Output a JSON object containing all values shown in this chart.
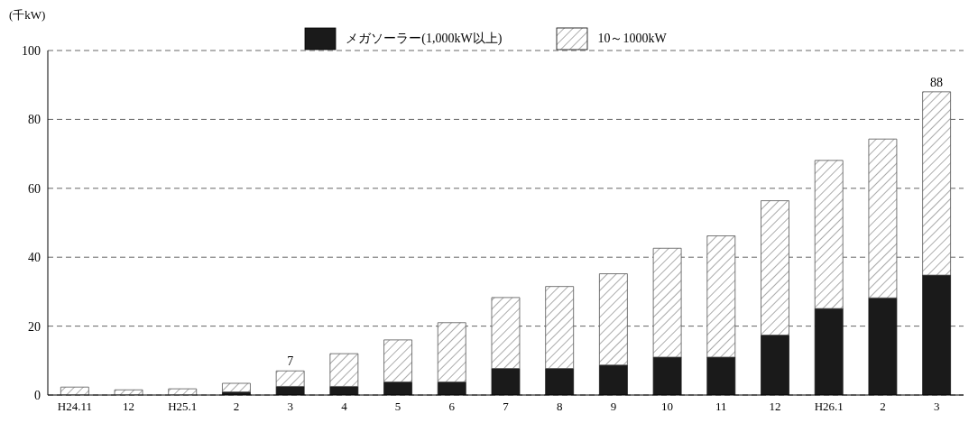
{
  "chart_data": {
    "type": "bar",
    "stacked": true,
    "ylabel": "(千kW)",
    "categories": [
      "H24.11",
      "12",
      "H25.1",
      "2",
      "3",
      "4",
      "5",
      "6",
      "7",
      "8",
      "9",
      "10",
      "11",
      "12",
      "H26.1",
      "2",
      "3"
    ],
    "series": [
      {
        "name": "メガソーラー(1,000kW以上)",
        "color": "#1a1a1a",
        "values": [
          0,
          0,
          0,
          0.9,
          2.5,
          2.5,
          3.8,
          3.8,
          7.7,
          7.7,
          8.7,
          11,
          11,
          17.4,
          25.1,
          28.2,
          34.8
        ]
      },
      {
        "name": "10～1000kW",
        "color": "#555555",
        "values": [
          2.3,
          1.5,
          1.8,
          2.5,
          4.5,
          9.5,
          12.2,
          17.2,
          20.6,
          23.8,
          26.5,
          31.6,
          35.2,
          39,
          43,
          46.1,
          53.2
        ]
      }
    ],
    "totals": [
      null,
      null,
      null,
      null,
      "7",
      null,
      null,
      null,
      null,
      null,
      null,
      null,
      null,
      null,
      null,
      null,
      "88"
    ],
    "ylim": [
      0,
      100
    ],
    "yticks": [
      0,
      20,
      40,
      60,
      80,
      100
    ],
    "grid": "y",
    "legend": "top"
  }
}
